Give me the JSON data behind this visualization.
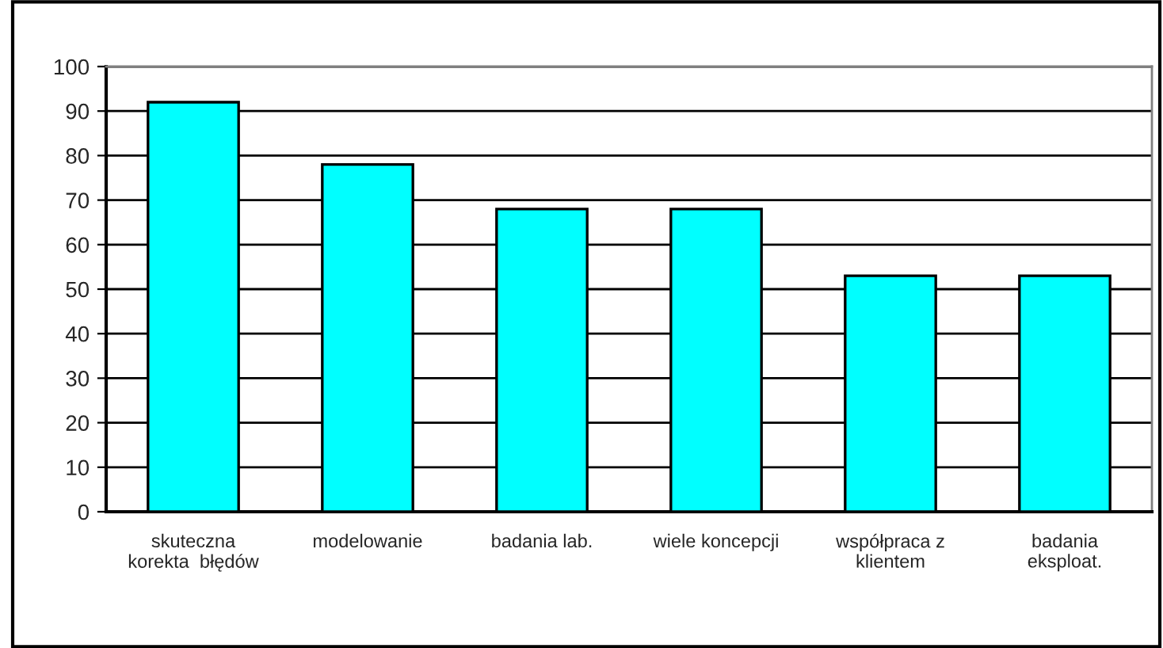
{
  "chart_data": {
    "type": "bar",
    "categories": [
      "skuteczna\nkorekta  błędów",
      "modelowanie",
      "badania lab.",
      "wiele koncepcji",
      "współpraca z\nklientem",
      "badania\neksploat."
    ],
    "values": [
      92,
      78,
      68,
      68,
      53,
      53
    ],
    "color": "#00ffff",
    "ylim": [
      0,
      100
    ],
    "yticks": [
      0,
      10,
      20,
      30,
      40,
      50,
      60,
      70,
      80,
      90,
      100
    ],
    "grid": "y",
    "legend": false
  }
}
